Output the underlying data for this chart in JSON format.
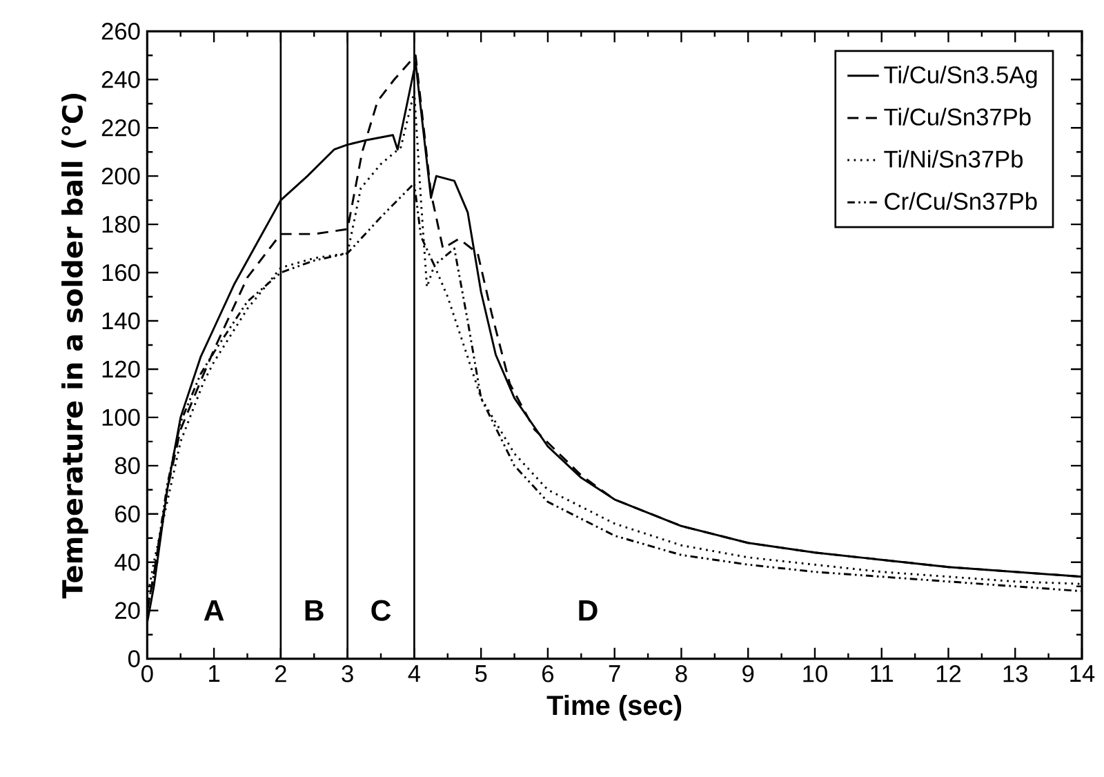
{
  "chart_data": {
    "type": "line",
    "xlabel": "Time (sec)",
    "ylabel": "Temperature in a solder ball (℃)",
    "xlim": [
      0,
      14
    ],
    "ylim": [
      0,
      260
    ],
    "xticks": [
      0,
      1,
      2,
      3,
      4,
      5,
      6,
      7,
      8,
      9,
      10,
      11,
      12,
      13,
      14
    ],
    "yticks": [
      0,
      20,
      40,
      60,
      80,
      100,
      120,
      140,
      160,
      180,
      200,
      220,
      240,
      260
    ],
    "legend": "top right",
    "grid": false,
    "marker": "none",
    "ref_lines": [
      {
        "axis": "x",
        "value": 2,
        "color": "#000000"
      },
      {
        "axis": "x",
        "value": 3,
        "color": "#000000"
      },
      {
        "axis": "x",
        "value": 4,
        "color": "#000000"
      }
    ],
    "annotations": [
      "A",
      "B",
      "C",
      "D"
    ],
    "series": [
      {
        "name": "Ti/Cu/Sn3.5Ag",
        "color": "#000000",
        "line_style": "solid",
        "x": [
          0,
          0.1,
          0.3,
          0.5,
          0.8,
          1.0,
          1.3,
          1.6,
          2.0,
          2.4,
          2.8,
          3.0,
          3.3,
          3.68,
          3.75,
          4.02,
          4.25,
          4.33,
          4.6,
          4.8,
          5.0,
          5.22,
          5.5,
          6.0,
          6.5,
          7.0,
          8.0,
          9.0,
          10.0,
          11.0,
          12.0,
          13.0,
          14.0
        ],
        "values": [
          15,
          30,
          70,
          100,
          125,
          137,
          155,
          170,
          190,
          200,
          211,
          213,
          215,
          217,
          211,
          247,
          191,
          200,
          198,
          185,
          152,
          126,
          108,
          88,
          75,
          66,
          55,
          48,
          44,
          41,
          38,
          36,
          34
        ]
      },
      {
        "name": "Ti/Cu/Sn37Pb",
        "color": "#000000",
        "line_style": "dashed",
        "x": [
          0,
          0.1,
          0.3,
          0.5,
          0.8,
          1.0,
          1.5,
          2.0,
          2.5,
          3.0,
          3.22,
          3.45,
          3.7,
          4.02,
          4.25,
          4.43,
          4.67,
          4.95,
          5.16,
          5.43,
          5.8,
          6.5,
          7.0,
          8.0,
          9.0,
          10.0,
          11.0,
          12.0,
          13.0,
          14.0
        ],
        "values": [
          20,
          35,
          70,
          95,
          115,
          128,
          158,
          176,
          176,
          178,
          210,
          231,
          240,
          250,
          193,
          170,
          174,
          168,
          143,
          114,
          95,
          76,
          66,
          55,
          48,
          44,
          41,
          38,
          36,
          34
        ]
      },
      {
        "name": "Ti/Ni/Sn37Pb",
        "color": "#000000",
        "line_style": "dotted",
        "x": [
          0,
          0.1,
          0.3,
          0.5,
          0.85,
          1.0,
          1.5,
          2.0,
          2.5,
          3.0,
          3.2,
          3.5,
          3.8,
          4.0,
          4.1,
          4.19,
          4.3,
          4.5,
          4.8,
          5.0,
          5.5,
          6.0,
          7.0,
          8.0,
          9.0,
          10.0,
          11.0,
          12.0,
          13.0,
          14.0
        ],
        "values": [
          25,
          40,
          65,
          90,
          115,
          123,
          145,
          162,
          166,
          168,
          195,
          205,
          212,
          235,
          190,
          154,
          163,
          150,
          125,
          108,
          85,
          70,
          56,
          47,
          42,
          39,
          36,
          34,
          32,
          31
        ]
      },
      {
        "name": "Cr/Cu/Sn37Pb",
        "color": "#000000",
        "line_style": "dashdotdot",
        "x": [
          0,
          0.1,
          0.3,
          0.5,
          0.8,
          1.0,
          1.5,
          2.0,
          2.5,
          3.0,
          3.5,
          4.0,
          4.1,
          4.3,
          4.6,
          4.8,
          5.0,
          5.5,
          6.0,
          7.0,
          8.0,
          9.0,
          10.0,
          11.0,
          12.0,
          13.0,
          14.0
        ],
        "values": [
          20,
          35,
          72,
          98,
          118,
          127,
          148,
          160,
          165,
          168,
          183,
          197,
          175,
          163,
          170,
          140,
          108,
          80,
          65,
          51,
          43,
          39,
          36,
          34,
          32,
          30,
          28
        ]
      }
    ]
  }
}
